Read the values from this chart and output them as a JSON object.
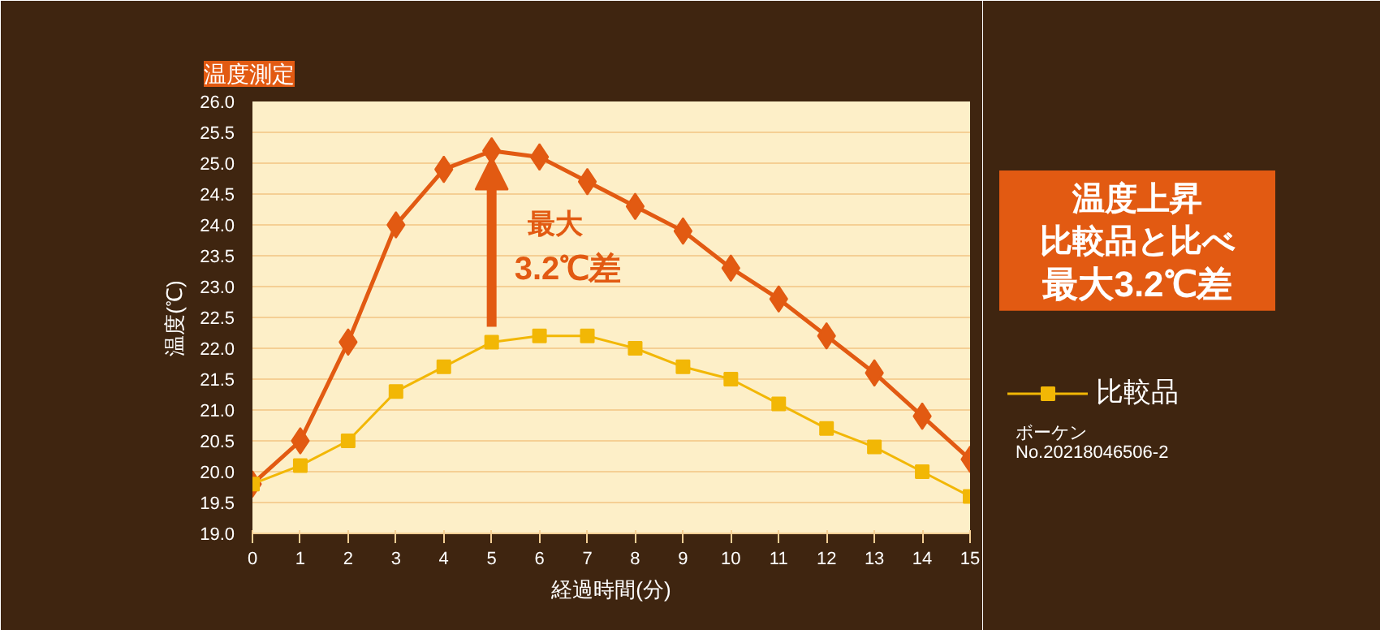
{
  "chart_data": {
    "type": "line",
    "title": "温度測定",
    "xlabel": "経過時間(分)",
    "ylabel": "温度(℃)",
    "x": [
      0,
      1,
      2,
      3,
      4,
      5,
      6,
      7,
      8,
      9,
      10,
      11,
      12,
      13,
      14,
      15
    ],
    "series": [
      {
        "color": "#e25a12",
        "marker": "diamond",
        "values": [
          19.8,
          20.5,
          22.1,
          24.0,
          24.9,
          25.2,
          25.1,
          24.7,
          24.3,
          23.9,
          23.3,
          22.8,
          22.2,
          21.6,
          20.9,
          20.2
        ]
      },
      {
        "name": "比較品",
        "color": "#f2b705",
        "marker": "square",
        "values": [
          19.8,
          20.1,
          20.5,
          21.3,
          21.7,
          22.1,
          22.2,
          22.2,
          22.0,
          21.7,
          21.5,
          21.1,
          20.7,
          20.4,
          20.0,
          19.6
        ]
      }
    ],
    "xlim": [
      0,
      15
    ],
    "xticks": [
      0,
      1,
      2,
      3,
      4,
      5,
      6,
      7,
      8,
      9,
      10,
      11,
      12,
      13,
      14,
      15
    ],
    "ylim": [
      19,
      26
    ],
    "yticks": [
      {
        "value": 19,
        "label": "19.0"
      },
      19.5,
      {
        "value": 20,
        "label": "20.0"
      },
      20.5,
      {
        "value": 21,
        "label": "21.0"
      },
      21.5,
      {
        "value": 22,
        "label": "22.0"
      },
      22.5,
      {
        "value": 23,
        "label": "23.0"
      },
      23.5,
      {
        "value": 24,
        "label": "24.0"
      },
      24.5,
      {
        "value": 25,
        "label": "25.0"
      },
      25.5,
      {
        "value": 26,
        "label": "26.0"
      }
    ],
    "grid": "y",
    "legend": "right",
    "annotations": [
      "最大",
      "3.2℃差",
      "温度上昇",
      "比較品と比べ",
      "最大3.2℃差",
      "ボーケン",
      "No.20218046506-2"
    ]
  }
}
